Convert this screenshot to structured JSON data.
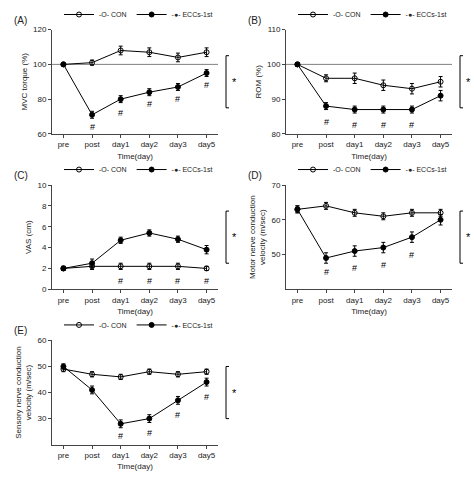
{
  "chart_data": [
    {
      "type": "line",
      "title": "(A)",
      "x_label": "Time(day)",
      "y_label": "MVC torque (%)",
      "categories": [
        "pre",
        "post",
        "day1",
        "day2",
        "day3",
        "day5"
      ],
      "ylim": [
        60,
        120
      ],
      "yticks": [
        60,
        80,
        100,
        120
      ],
      "grid": false,
      "legend": "above",
      "reference_line": 100,
      "series": [
        {
          "name": "-O- CON",
          "color": "black",
          "marker": "circle-open",
          "values": [
            100,
            101,
            108,
            107,
            104,
            107
          ],
          "errors": [
            0.5,
            1.5,
            2.5,
            2.5,
            2.5,
            2.5
          ]
        },
        {
          "name": "-●- ECCs-1st",
          "color": "black",
          "marker": "circle",
          "values": [
            100,
            71,
            80,
            84,
            87,
            95
          ],
          "errors": [
            0.5,
            2.0,
            2.0,
            2.0,
            2.0,
            2.0
          ]
        }
      ],
      "annotations": [
        {
          "text": "#",
          "x": "post",
          "y": 68
        },
        {
          "text": "#",
          "x": "day1",
          "y": 76
        },
        {
          "text": "#",
          "x": "day2",
          "y": 81
        },
        {
          "text": "#",
          "x": "day3",
          "y": 84
        },
        {
          "text": "#",
          "x": "day5",
          "y": 92
        }
      ],
      "sig_label": "*"
    },
    {
      "type": "line",
      "title": "(B)",
      "x_label": "Time(day)",
      "y_label": "ROM (%)",
      "categories": [
        "pre",
        "post",
        "day1",
        "day2",
        "day3",
        "day5"
      ],
      "ylim": [
        80,
        110
      ],
      "yticks": [
        80,
        90,
        100,
        110
      ],
      "grid": false,
      "legend": "above",
      "reference_line": 100,
      "series": [
        {
          "name": "-O- CON",
          "color": "black",
          "marker": "circle-open",
          "values": [
            100,
            96,
            96,
            94,
            93,
            95
          ],
          "errors": [
            0.5,
            1.0,
            1.5,
            1.5,
            1.5,
            1.5
          ]
        },
        {
          "name": "-●- ECCs-1st",
          "color": "black",
          "marker": "circle",
          "values": [
            100,
            88,
            87,
            87,
            87,
            91
          ],
          "errors": [
            0.5,
            1.0,
            1.0,
            1.0,
            1.0,
            1.5
          ]
        }
      ],
      "annotations": [
        {
          "text": "#",
          "x": "post",
          "y": 85.5
        },
        {
          "text": "#",
          "x": "day1",
          "y": 84.5
        },
        {
          "text": "#",
          "x": "day2",
          "y": 84.5
        },
        {
          "text": "#",
          "x": "day3",
          "y": 84.5
        }
      ],
      "sig_label": "*"
    },
    {
      "type": "line",
      "title": "(C)",
      "x_label": "Time(day)",
      "y_label": "VAS (cm)",
      "categories": [
        "pre",
        "post",
        "day1",
        "day2",
        "day3",
        "day5"
      ],
      "ylim": [
        0,
        10
      ],
      "yticks": [
        0,
        2,
        4,
        6,
        8,
        10
      ],
      "grid": false,
      "legend": "above",
      "series": [
        {
          "name": "-O- CON",
          "color": "black",
          "marker": "circle-open",
          "values": [
            2.0,
            2.2,
            2.2,
            2.2,
            2.2,
            2.0
          ],
          "errors": [
            0.2,
            0.3,
            0.3,
            0.3,
            0.3,
            0.2
          ]
        },
        {
          "name": "-●- ECCs-1st",
          "color": "black",
          "marker": "circle",
          "values": [
            2.0,
            2.5,
            4.7,
            5.4,
            4.8,
            3.8
          ],
          "errors": [
            0.2,
            0.4,
            0.3,
            0.3,
            0.3,
            0.4
          ]
        }
      ],
      "annotations": [
        {
          "text": "#",
          "x": "day1",
          "y": 1.5
        },
        {
          "text": "#",
          "x": "day2",
          "y": 1.5
        },
        {
          "text": "#",
          "x": "day3",
          "y": 1.5
        },
        {
          "text": "#",
          "x": "day5",
          "y": 1.5
        }
      ],
      "sig_label": "*"
    },
    {
      "type": "line",
      "title": "(D)",
      "x_label": "Time(day)",
      "y_label": "Motor nerve conduction\nvelocity (m/sec)",
      "categories": [
        "pre",
        "post",
        "day1",
        "day2",
        "day3",
        "day5"
      ],
      "ylim": [
        40,
        70
      ],
      "yticks": [
        50,
        60,
        70
      ],
      "grid": false,
      "legend": "above",
      "series": [
        {
          "name": "-O- CON",
          "color": "black",
          "marker": "circle-open",
          "values": [
            63,
            64,
            62,
            61,
            62,
            62
          ],
          "errors": [
            1.0,
            1.0,
            1.0,
            1.0,
            1.0,
            1.0
          ]
        },
        {
          "name": "-●- ECCs-1st",
          "color": "black",
          "marker": "circle",
          "values": [
            63,
            49,
            51,
            52,
            55,
            60
          ],
          "errors": [
            1.0,
            1.5,
            1.5,
            1.5,
            1.5,
            1.5
          ]
        }
      ],
      "annotations": [
        {
          "text": "#",
          "x": "post",
          "y": 47
        },
        {
          "text": "#",
          "x": "day1",
          "y": 48
        },
        {
          "text": "#",
          "x": "day2",
          "y": 49
        },
        {
          "text": "#",
          "x": "day3",
          "y": 52
        }
      ],
      "sig_label": "*"
    },
    {
      "type": "line",
      "title": "(E)",
      "x_label": "Time(day)",
      "y_label": "Sensory nerve conduction\nvelocity (m/sec)",
      "categories": [
        "pre",
        "post",
        "day1",
        "day2",
        "day3",
        "day5"
      ],
      "ylim": [
        20,
        60
      ],
      "yticks": [
        30,
        40,
        50,
        60
      ],
      "grid": false,
      "legend": "above",
      "series": [
        {
          "name": "-O- CON",
          "color": "black",
          "marker": "circle-open",
          "values": [
            49,
            47,
            46,
            48,
            47,
            48
          ],
          "errors": [
            1.0,
            1.0,
            1.0,
            1.0,
            1.0,
            1.0
          ]
        },
        {
          "name": "-●- ECCs-1st",
          "color": "black",
          "marker": "circle",
          "values": [
            50,
            41,
            28,
            30,
            37,
            44
          ],
          "errors": [
            1.0,
            1.5,
            1.5,
            1.5,
            1.5,
            1.5
          ]
        }
      ],
      "annotations": [
        {
          "text": "#",
          "x": "day1",
          "y": 26
        },
        {
          "text": "#",
          "x": "day2",
          "y": 27
        },
        {
          "text": "#",
          "x": "day3",
          "y": 34
        },
        {
          "text": "#",
          "x": "day5",
          "y": 41
        }
      ],
      "sig_label": "*"
    }
  ]
}
